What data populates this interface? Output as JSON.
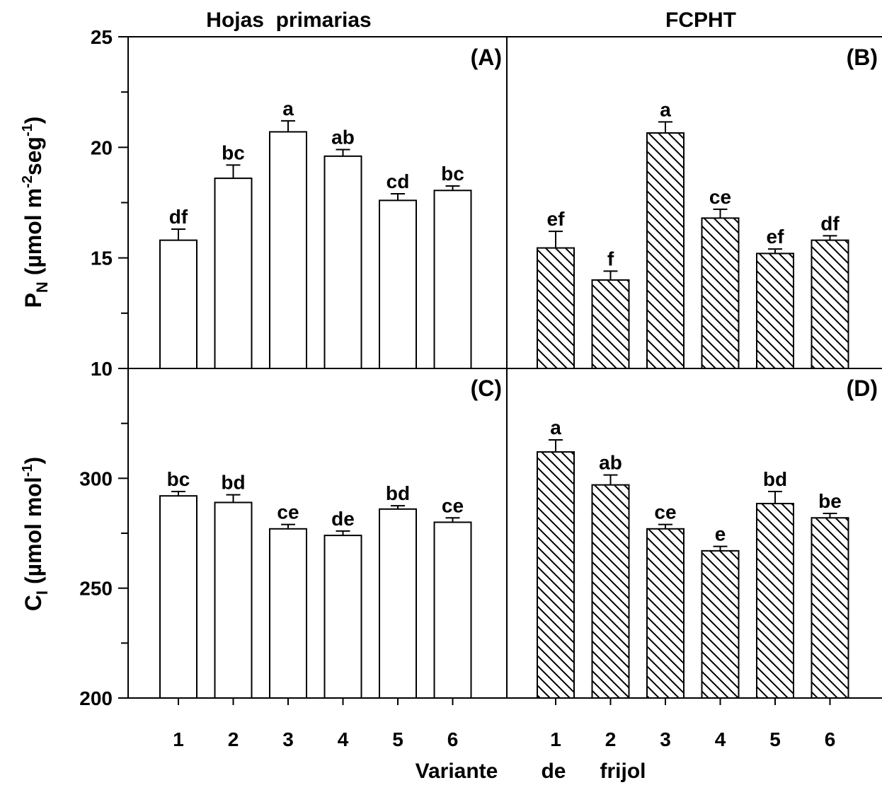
{
  "column_titles": {
    "left": "Hojas  primarias",
    "right": "FCPHT"
  },
  "x_axis": {
    "label_parts": [
      "Variante",
      "de",
      "frijol"
    ]
  },
  "y_axes": {
    "top": {
      "main": "P",
      "sub": "N",
      "pre_unit": " (µmol m",
      "exp1": "-2",
      "mid": "seg",
      "exp2": "-1",
      "post": ")"
    },
    "bottom": {
      "main": "C",
      "sub": "I",
      "pre_unit": " (µmol mol",
      "exp1": "-1",
      "post": ")"
    }
  },
  "colors": {
    "bar_fill": "#ffffff",
    "stroke": "#000000",
    "hatch": "#000000"
  },
  "chart_data": [
    {
      "panel": "(A)",
      "type": "bar",
      "title": "Hojas  primarias",
      "categories": [
        "1",
        "2",
        "3",
        "4",
        "5",
        "6"
      ],
      "values": [
        15.8,
        18.6,
        20.7,
        19.6,
        17.6,
        18.05
      ],
      "errors": [
        0.5,
        0.6,
        0.5,
        0.3,
        0.3,
        0.2
      ],
      "significance": [
        "df",
        "bc",
        "a",
        "ab",
        "cd",
        "bc"
      ],
      "ylim": [
        10,
        25
      ],
      "yticks": [
        10,
        15,
        20,
        25
      ],
      "fill": "plain"
    },
    {
      "panel": "(B)",
      "type": "bar",
      "title": "FCPHT",
      "categories": [
        "1",
        "2",
        "3",
        "4",
        "5",
        "6"
      ],
      "values": [
        15.45,
        14.0,
        20.65,
        16.8,
        15.2,
        15.8
      ],
      "errors": [
        0.75,
        0.4,
        0.5,
        0.4,
        0.2,
        0.2
      ],
      "significance": [
        "ef",
        "f",
        "a",
        "ce",
        "ef",
        "df"
      ],
      "ylim": [
        10,
        25
      ],
      "yticks": [
        10,
        15,
        20,
        25
      ],
      "fill": "hatched"
    },
    {
      "panel": "(C)",
      "type": "bar",
      "categories": [
        "1",
        "2",
        "3",
        "4",
        "5",
        "6"
      ],
      "values": [
        292,
        289,
        277,
        274,
        286,
        280
      ],
      "errors": [
        2,
        3.5,
        2,
        2,
        1.5,
        2
      ],
      "significance": [
        "bc",
        "bd",
        "ce",
        "de",
        "bd",
        "ce"
      ],
      "ylim": [
        200,
        350
      ],
      "yticks": [
        200,
        250,
        300
      ],
      "fill": "plain"
    },
    {
      "panel": "(D)",
      "type": "bar",
      "categories": [
        "1",
        "2",
        "3",
        "4",
        "5",
        "6"
      ],
      "values": [
        312,
        297,
        277,
        267,
        288.5,
        282
      ],
      "errors": [
        5.5,
        4.5,
        2,
        2,
        5.5,
        2
      ],
      "significance": [
        "a",
        "ab",
        "ce",
        "e",
        "bd",
        "be"
      ],
      "ylim": [
        200,
        350
      ],
      "yticks": [
        200,
        250,
        300
      ],
      "fill": "hatched"
    }
  ]
}
